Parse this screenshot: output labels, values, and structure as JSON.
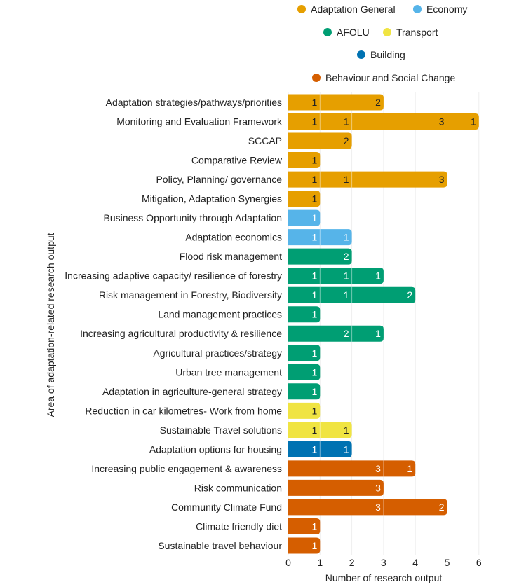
{
  "chart_data": {
    "type": "bar",
    "orientation": "horizontal",
    "stacked": true,
    "xlabel": "Number of research output",
    "ylabel": "Area of adaptation-related research output",
    "xlim": [
      0,
      6
    ],
    "xticks": [
      "0",
      "1",
      "2",
      "3",
      "4",
      "5",
      "6"
    ],
    "grid": true,
    "legend_placement": "top",
    "legend": [
      {
        "name": "Adaptation General",
        "color": "#E69F00"
      },
      {
        "name": "Economy",
        "color": "#56B4E9"
      },
      {
        "name": "AFOLU",
        "color": "#009E73"
      },
      {
        "name": "Transport",
        "color": "#F0E442"
      },
      {
        "name": "Building",
        "color": "#0072B2"
      },
      {
        "name": "Behaviour and Social Change",
        "color": "#D55E00"
      }
    ],
    "categories": [
      {
        "label": "Adaptation strategies/pathways/priorities",
        "group": "Adaptation General",
        "segments": [
          1,
          2
        ]
      },
      {
        "label": "Monitoring and Evaluation Framework",
        "group": "Adaptation General",
        "segments": [
          1,
          1,
          3,
          1
        ]
      },
      {
        "label": "SCCAP",
        "group": "Adaptation General",
        "segments": [
          2
        ]
      },
      {
        "label": "Comparative Review",
        "group": "Adaptation General",
        "segments": [
          1
        ]
      },
      {
        "label": "Policy, Planning/ governance",
        "group": "Adaptation General",
        "segments": [
          1,
          1,
          3
        ]
      },
      {
        "label": "Mitigation, Adaptation Synergies",
        "group": "Adaptation General",
        "segments": [
          1
        ]
      },
      {
        "label": "Business Opportunity through Adaptation",
        "group": "Economy",
        "segments": [
          1
        ]
      },
      {
        "label": "Adaptation economics",
        "group": "Economy",
        "segments": [
          1,
          1
        ]
      },
      {
        "label": "Flood risk management",
        "group": "AFOLU",
        "segments": [
          2
        ]
      },
      {
        "label": "Increasing adaptive capacity/ resilience of forestry",
        "group": "AFOLU",
        "segments": [
          1,
          1,
          1
        ]
      },
      {
        "label": "Risk management in Forestry, Biodiversity",
        "group": "AFOLU",
        "segments": [
          1,
          1,
          2
        ]
      },
      {
        "label": "Land management practices",
        "group": "AFOLU",
        "segments": [
          1
        ]
      },
      {
        "label": "Increasing agricultural productivity & resilience",
        "group": "AFOLU",
        "segments": [
          2,
          1
        ]
      },
      {
        "label": "Agricultural practices/strategy",
        "group": "AFOLU",
        "segments": [
          1
        ]
      },
      {
        "label": "Urban tree management",
        "group": "AFOLU",
        "segments": [
          1
        ]
      },
      {
        "label": "Adaptation in agriculture-general strategy",
        "group": "AFOLU",
        "segments": [
          1
        ]
      },
      {
        "label": "Reduction in car kilometres- Work from home",
        "group": "Transport",
        "segments": [
          1
        ]
      },
      {
        "label": "Sustainable Travel solutions",
        "group": "Transport",
        "segments": [
          1,
          1
        ]
      },
      {
        "label": "Adaptation options for housing",
        "group": "Building",
        "segments": [
          1,
          1
        ]
      },
      {
        "label": "Increasing public engagement & awareness",
        "group": "Behaviour and Social Change",
        "segments": [
          3,
          1
        ]
      },
      {
        "label": "Risk communication",
        "group": "Behaviour and Social Change",
        "segments": [
          3
        ]
      },
      {
        "label": "Community Climate Fund",
        "group": "Behaviour and Social Change",
        "segments": [
          3,
          2
        ]
      },
      {
        "label": "Climate friendly diet",
        "group": "Behaviour and Social Change",
        "segments": [
          1
        ]
      },
      {
        "label": "Sustainable travel behaviour",
        "group": "Behaviour and Social Change",
        "segments": [
          1
        ]
      }
    ]
  }
}
